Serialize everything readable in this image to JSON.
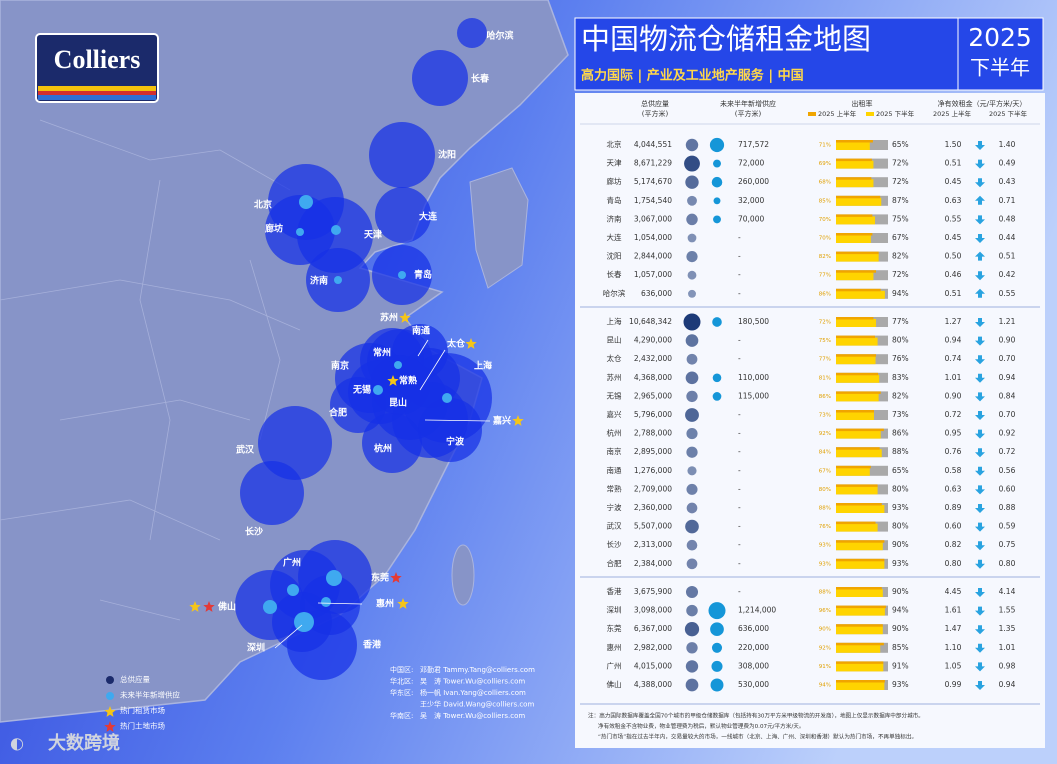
{
  "logo": "Colliers",
  "header": {
    "title": "中国物流仓储租金地图",
    "year": "2025",
    "half": "下半年",
    "subtitle": "高力国际 | 产业及工业地产服务 | 中国"
  },
  "table": {
    "columns": [
      "总供应量",
      "(平方米)",
      "未来半年新增供应",
      "(平方米)",
      "出租率",
      "2025 上半年",
      "2025 下半年",
      "净有效租金（元/平方米/天）",
      "2025 上半年",
      "2025 下半年"
    ],
    "groups": [
      {
        "rows": [
          [
            "北京",
            {
              "value": 4044551,
              "label": "4,044,551"
            },
            {
              "value": 717572,
              "label": "717,572"
            },
            {
              "value": 71,
              "label": "71%"
            },
            {
              "value": 65,
              "label": "65%"
            },
            "1.50",
            "1.40"
          ],
          [
            "天津",
            {
              "value": 8671229,
              "label": "8,671,229"
            },
            {
              "value": 72000,
              "label": "72,000"
            },
            {
              "value": 69,
              "label": "69%"
            },
            {
              "value": 72,
              "label": "72%"
            },
            "0.51",
            "0.49"
          ],
          [
            "廊坊",
            {
              "value": 5174670,
              "label": "5,174,670"
            },
            {
              "value": 260000,
              "label": "260,000"
            },
            {
              "value": 68,
              "label": "68%"
            },
            {
              "value": 72,
              "label": "72%"
            },
            "0.45",
            "0.43"
          ],
          [
            "青岛",
            {
              "value": 1754540,
              "label": "1,754,540"
            },
            {
              "value": 32000,
              "label": "32,000"
            },
            {
              "value": 85,
              "label": "85%"
            },
            {
              "value": 87,
              "label": "87%"
            },
            "0.63",
            "0.71"
          ],
          [
            "济南",
            {
              "value": 3067000,
              "label": "3,067,000"
            },
            {
              "value": 70000,
              "label": "70,000"
            },
            {
              "value": 70,
              "label": "70%"
            },
            {
              "value": 75,
              "label": "75%"
            },
            "0.55",
            "0.48"
          ],
          [
            "大连",
            {
              "value": 1054000,
              "label": "1,054,000"
            },
            "-",
            {
              "value": 70,
              "label": "70%"
            },
            {
              "value": 67,
              "label": "67%"
            },
            "0.45",
            "0.44"
          ],
          [
            "沈阳",
            {
              "value": 2844000,
              "label": "2,844,000"
            },
            "-",
            {
              "value": 82,
              "label": "82%"
            },
            {
              "value": 82,
              "label": "82%"
            },
            "0.50",
            "0.51"
          ],
          [
            "长春",
            {
              "value": 1057000,
              "label": "1,057,000"
            },
            "-",
            {
              "value": 77,
              "label": "77%"
            },
            {
              "value": 72,
              "label": "72%"
            },
            "0.46",
            "0.42"
          ],
          [
            "哈尔滨",
            {
              "value": 636000,
              "label": "636,000"
            },
            "-",
            {
              "value": 86,
              "label": "86%"
            },
            {
              "value": 94,
              "label": "94%"
            },
            "0.51",
            "0.55"
          ]
        ]
      },
      {
        "rows": [
          [
            "上海",
            {
              "value": 10648342,
              "label": "10,648,342"
            },
            {
              "value": 180500,
              "label": "180,500"
            },
            {
              "value": 72,
              "label": "72%"
            },
            {
              "value": 77,
              "label": "77%"
            },
            "1.27",
            "1.21"
          ],
          [
            "昆山",
            {
              "value": 4290000,
              "label": "4,290,000"
            },
            "-",
            {
              "value": 75,
              "label": "75%"
            },
            {
              "value": 80,
              "label": "80%"
            },
            "0.94",
            "0.90"
          ],
          [
            "太仓",
            {
              "value": 2432000,
              "label": "2,432,000"
            },
            "-",
            {
              "value": 77,
              "label": "77%"
            },
            {
              "value": 76,
              "label": "76%"
            },
            "0.74",
            "0.70"
          ],
          [
            "苏州",
            {
              "value": 4368000,
              "label": "4,368,000"
            },
            {
              "value": 110000,
              "label": "110,000"
            },
            {
              "value": 81,
              "label": "81%"
            },
            {
              "value": 83,
              "label": "83%"
            },
            "1.01",
            "0.94"
          ],
          [
            "无锡",
            {
              "value": 2965000,
              "label": "2,965,000"
            },
            {
              "value": 115000,
              "label": "115,000"
            },
            {
              "value": 86,
              "label": "86%"
            },
            {
              "value": 82,
              "label": "82%"
            },
            "0.90",
            "0.84"
          ],
          [
            "嘉兴",
            {
              "value": 5796000,
              "label": "5,796,000"
            },
            "-",
            {
              "value": 73,
              "label": "73%"
            },
            {
              "value": 73,
              "label": "73%"
            },
            "0.72",
            "0.70"
          ],
          [
            "杭州",
            {
              "value": 2788000,
              "label": "2,788,000"
            },
            "-",
            {
              "value": 92,
              "label": "92%"
            },
            {
              "value": 86,
              "label": "86%"
            },
            "0.95",
            "0.92"
          ],
          [
            "南京",
            {
              "value": 2895000,
              "label": "2,895,000"
            },
            "-",
            {
              "value": 84,
              "label": "84%"
            },
            {
              "value": 88,
              "label": "88%"
            },
            "0.76",
            "0.72"
          ],
          [
            "南通",
            {
              "value": 1276000,
              "label": "1,276,000"
            },
            "-",
            {
              "value": 67,
              "label": "67%"
            },
            {
              "value": 65,
              "label": "65%"
            },
            "0.58",
            "0.56"
          ],
          [
            "常熟",
            {
              "value": 2709000,
              "label": "2,709,000"
            },
            "-",
            {
              "value": 80,
              "label": "80%"
            },
            {
              "value": 80,
              "label": "80%"
            },
            "0.63",
            "0.60"
          ],
          [
            "宁波",
            {
              "value": 2360000,
              "label": "2,360,000"
            },
            "-",
            {
              "value": 88,
              "label": "88%"
            },
            {
              "value": 93,
              "label": "93%"
            },
            "0.89",
            "0.88"
          ],
          [
            "武汉",
            {
              "value": 5507000,
              "label": "5,507,000"
            },
            "-",
            {
              "value": 76,
              "label": "76%"
            },
            {
              "value": 80,
              "label": "80%"
            },
            "0.60",
            "0.59"
          ],
          [
            "长沙",
            {
              "value": 2313000,
              "label": "2,313,000"
            },
            "-",
            {
              "value": 93,
              "label": "93%"
            },
            {
              "value": 90,
              "label": "90%"
            },
            "0.82",
            "0.75"
          ],
          [
            "合肥",
            {
              "value": 2384000,
              "label": "2,384,000"
            },
            "-",
            {
              "value": 93,
              "label": "93%"
            },
            {
              "value": 93,
              "label": "93%"
            },
            "0.80",
            "0.80"
          ]
        ]
      },
      {
        "rows": [
          [
            "香港",
            {
              "value": 3675900,
              "label": "3,675,900"
            },
            "-",
            {
              "value": 88,
              "label": "88%"
            },
            {
              "value": 90,
              "label": "90%"
            },
            "4.45",
            "4.14"
          ],
          [
            "深圳",
            {
              "value": 3098000,
              "label": "3,098,000"
            },
            {
              "value": 1214000,
              "label": "1,214,000"
            },
            {
              "value": 96,
              "label": "96%"
            },
            {
              "value": 94,
              "label": "94%"
            },
            "1.61",
            "1.55"
          ],
          [
            "东莞",
            {
              "value": 6367000,
              "label": "6,367,000"
            },
            {
              "value": 636000,
              "label": "636,000"
            },
            {
              "value": 90,
              "label": "90%"
            },
            {
              "value": 90,
              "label": "90%"
            },
            "1.47",
            "1.35"
          ],
          [
            "惠州",
            {
              "value": 2982000,
              "label": "2,982,000"
            },
            {
              "value": 220000,
              "label": "220,000"
            },
            {
              "value": 92,
              "label": "92%"
            },
            {
              "value": 85,
              "label": "85%"
            },
            "1.10",
            "1.01"
          ],
          [
            "广州",
            {
              "value": 4015000,
              "label": "4,015,000"
            },
            {
              "value": 308000,
              "label": "308,000"
            },
            {
              "value": 91,
              "label": "91%"
            },
            {
              "value": 91,
              "label": "91%"
            },
            "1.05",
            "0.98"
          ],
          [
            "佛山",
            {
              "value": 4388000,
              "label": "4,388,000"
            },
            {
              "value": 530000,
              "label": "530,000"
            },
            {
              "value": 94,
              "label": "94%"
            },
            {
              "value": 93,
              "label": "93%"
            },
            "0.99",
            "0.94"
          ]
        ]
      }
    ]
  },
  "footnote": [
    "注：高力国际数据库覆盖全国70个城市的甲级仓储数据库（包括持有30万平方米甲级物流的开发商），地图上仅显示数据库中部分城市。",
    "净有效租金不含物业费，物业管理费为税后，默认物业管理费为0.07元/平方米/天。",
    "“热门市场”指在过去半年内，交易量较大的市场，一线城市（北京、上海、广州、深圳和香港）默认为热门市场，不再单独标出。"
  ],
  "map": {
    "cities": [
      "哈尔滨",
      "长春",
      "沈阳",
      "大连",
      "北京",
      "廊坊",
      "天津",
      "济南",
      "青岛",
      "苏州",
      "南通",
      "太仓",
      "常州",
      "南京",
      "常熟",
      "上海",
      "无锡",
      "昆山",
      "合肥",
      "嘉兴",
      "宁波",
      "杭州",
      "武汉",
      "长沙",
      "广州",
      "东莞",
      "佛山",
      "惠州",
      "深圳",
      "香港"
    ]
  },
  "legend": [
    "总供应量",
    "未来半年新增供应",
    "热门租赁市场",
    "热门土地市场"
  ],
  "contacts": [
    [
      "中国区:",
      "邓勤君 Tammy.Tang@colliers.com"
    ],
    [
      "华北区:",
      "吴　涛 Tower.Wu@colliers.com"
    ],
    [
      "华东区:",
      "杨一帆 Ivan.Yang@colliers.com"
    ],
    [
      "",
      "王少华 David.Wang@colliers.com"
    ],
    [
      "华南区:",
      "吴　涛 Tower.Wu@colliers.com"
    ]
  ],
  "watermark": "大数跨境"
}
